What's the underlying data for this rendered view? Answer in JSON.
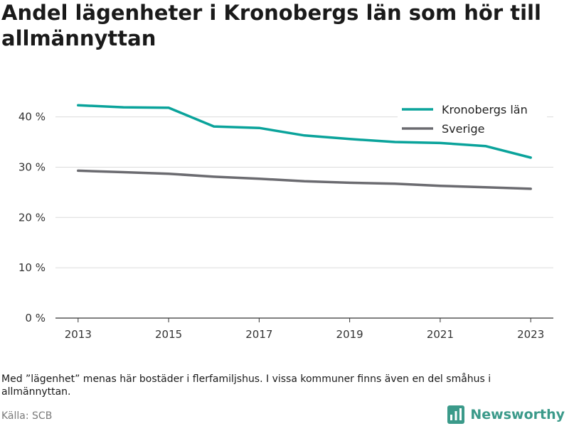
{
  "header": {
    "title": "Andel lägenheter i Kronobergs län som hör till allmännyttan"
  },
  "chart_data": {
    "type": "line",
    "x": [
      2013,
      2014,
      2015,
      2016,
      2017,
      2018,
      2019,
      2020,
      2021,
      2022,
      2023
    ],
    "series": [
      {
        "name": "Kronobergs län",
        "color": "#0aa39b",
        "values": [
          42.3,
          41.9,
          41.8,
          38.1,
          37.8,
          36.3,
          35.6,
          35.0,
          34.8,
          34.2,
          31.9
        ]
      },
      {
        "name": "Sverige",
        "color": "#6b6b70",
        "values": [
          29.3,
          29.0,
          28.7,
          28.1,
          27.7,
          27.2,
          26.9,
          26.7,
          26.3,
          26.0,
          25.7
        ]
      }
    ],
    "x_ticks": [
      "2013",
      "2015",
      "2017",
      "2019",
      "2021",
      "2023"
    ],
    "y_ticks": [
      0,
      10,
      20,
      30,
      40
    ],
    "y_tick_labels": [
      "0 %",
      "10 %",
      "20 %",
      "30 %",
      "40 %"
    ],
    "ylim": [
      0,
      47
    ],
    "xlim": [
      2012.5,
      2023.5
    ],
    "grid": "horizontal",
    "legend_position": "top-right"
  },
  "footer": {
    "note": "Med ”lägenhet” menas här bostäder i flerfamiljshus. I vissa kommuner finns även en del småhus i allmännyttan.",
    "source": "Källa: SCB",
    "brand": "Newsworthy"
  },
  "colors": {
    "grid": "#dcdcdc",
    "axis": "#333333",
    "brand": "#3b9a8a"
  }
}
